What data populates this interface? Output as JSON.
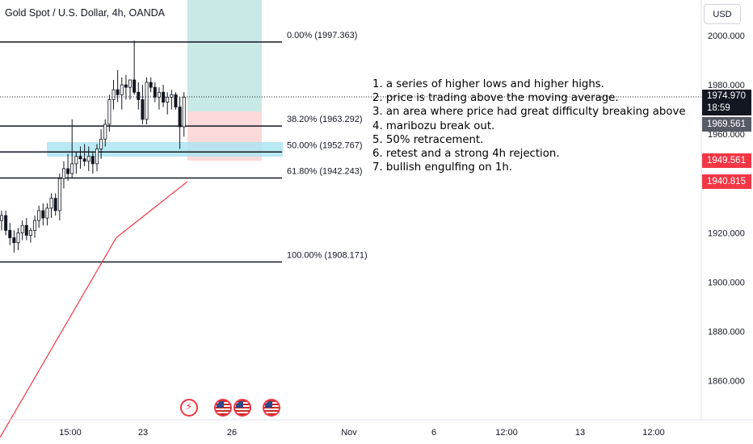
{
  "header": {
    "symbol_title": "Gold Spot / U.S. Dollar, 4h, OANDA",
    "currency": "USD"
  },
  "price_axis": {
    "ticks": [
      "2000.000",
      "1980.000",
      "1960.000",
      "1920.000",
      "1900.000",
      "1880.000",
      "1860.000"
    ]
  },
  "price_tags": {
    "last_price": "1974.970",
    "countdown": "18:59",
    "grey": "1969.561",
    "red_1": "1949.561",
    "red_2": "1940.815"
  },
  "time_axis": {
    "labels": [
      "15:00",
      "23",
      "26",
      "Nov",
      "6",
      "12:00",
      "13",
      "12:00"
    ]
  },
  "notes": [
    "1. a series of higher lows and higher highs.",
    "2. price is trading above the moving average.",
    "3. an area where price had great difficulty breaking above",
    "4. maribozu break out.",
    "5. 50% retracement.",
    "6. retest and a strong 4h rejection.",
    "7. bullish engulfing on 1h."
  ],
  "events": [
    {
      "icon": "lightning-icon",
      "glyph": "⚡"
    },
    {
      "icon": "us-flag-icon"
    },
    {
      "icon": "us-flag-icon"
    },
    {
      "icon": "us-flag-icon"
    }
  ],
  "colors": {
    "bull": "#26a69a",
    "bear": "#ef5350",
    "candle_body": "#131722",
    "moving_average": "#f23645",
    "zone": "#a7e3f0",
    "target_zone": "#b2dfdb",
    "stop_zone": "#fbd2d3"
  },
  "chart_data": {
    "type": "candlestick",
    "y_axis_range": [
      1840,
      2010
    ],
    "fibonacci_levels": [
      {
        "label": "0.00% (1997.363)",
        "ratio": 0.0,
        "price": 1997.363
      },
      {
        "label": "38.20% (1963.292)",
        "ratio": 0.382,
        "price": 1963.292
      },
      {
        "label": "50.00% (1952.767)",
        "ratio": 0.5,
        "price": 1952.767
      },
      {
        "label": "61.80% (1942.243)",
        "ratio": 0.618,
        "price": 1942.243
      },
      {
        "label": "100.00% (1908.171)",
        "ratio": 1.0,
        "price": 1908.171
      }
    ],
    "support_zone": [
      1950,
      1957
    ],
    "position": {
      "entry": 1969.561,
      "target": 2010,
      "stop": 1949.561
    },
    "moving_average_visible": [
      1837,
      1918,
      1940.8
    ],
    "candles": [
      [
        1925,
        1929,
        1921,
        1927
      ],
      [
        1927,
        1929,
        1919,
        1921
      ],
      [
        1921,
        1924,
        1915,
        1918
      ],
      [
        1918,
        1921,
        1912,
        1916
      ],
      [
        1916,
        1922,
        1913,
        1920
      ],
      [
        1920,
        1925,
        1917,
        1923
      ],
      [
        1923,
        1926,
        1917,
        1919
      ],
      [
        1919,
        1922,
        1916,
        1921
      ],
      [
        1921,
        1927,
        1918,
        1925
      ],
      [
        1925,
        1931,
        1922,
        1929
      ],
      [
        1929,
        1932,
        1923,
        1926
      ],
      [
        1926,
        1932,
        1923,
        1930
      ],
      [
        1930,
        1936,
        1926,
        1934
      ],
      [
        1934,
        1936,
        1927,
        1929
      ],
      [
        1929,
        1944,
        1925,
        1942
      ],
      [
        1942,
        1949,
        1938,
        1946
      ],
      [
        1946,
        1952,
        1941,
        1944
      ],
      [
        1944,
        1966,
        1942,
        1948
      ],
      [
        1948,
        1953,
        1944,
        1951
      ],
      [
        1951,
        1955,
        1946,
        1950
      ],
      [
        1950,
        1956,
        1947,
        1949
      ],
      [
        1949,
        1955,
        1945,
        1951
      ],
      [
        1951,
        1953,
        1944,
        1948
      ],
      [
        1948,
        1956,
        1945,
        1954
      ],
      [
        1954,
        1962,
        1950,
        1958
      ],
      [
        1958,
        1966,
        1955,
        1964
      ],
      [
        1964,
        1976,
        1961,
        1974
      ],
      [
        1974,
        1982,
        1970,
        1978
      ],
      [
        1978,
        1986,
        1973,
        1976
      ],
      [
        1976,
        1983,
        1970,
        1980
      ],
      [
        1980,
        1984,
        1974,
        1979
      ],
      [
        1979,
        1982,
        1974,
        1982
      ],
      [
        1982,
        1998,
        1976,
        1977
      ],
      [
        1977,
        1981,
        1970,
        1974
      ],
      [
        1974,
        1980,
        1964,
        1966
      ],
      [
        1966,
        1983,
        1964,
        1981
      ],
      [
        1981,
        1983,
        1977,
        1979
      ],
      [
        1979,
        1981,
        1973,
        1975
      ],
      [
        1975,
        1979,
        1970,
        1977
      ],
      [
        1977,
        1980,
        1971,
        1973
      ],
      [
        1973,
        1977,
        1968,
        1975
      ],
      [
        1975,
        1978,
        1970,
        1976
      ],
      [
        1976,
        1977,
        1970,
        1971
      ],
      [
        1971,
        1975,
        1954,
        1963
      ],
      [
        1963,
        1977,
        1959,
        1975
      ]
    ]
  }
}
